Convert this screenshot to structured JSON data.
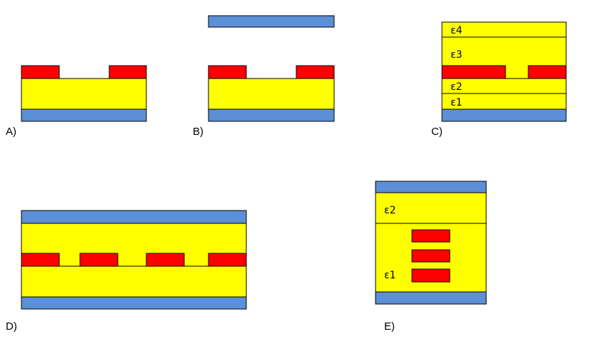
{
  "colors": {
    "ground": "#5b8fd6",
    "dielectric": "#ffff00",
    "conductor": "#ff0000",
    "outline": "#000000"
  },
  "panels": {
    "a": {
      "label": "A)"
    },
    "b": {
      "label": "B)"
    },
    "c": {
      "label": "C)",
      "eps": [
        "ε4",
        "ε3",
        "ε2",
        "ε1"
      ]
    },
    "d": {
      "label": "D)"
    },
    "e": {
      "label": "E)",
      "eps": [
        "ε2",
        "ε1"
      ]
    }
  }
}
